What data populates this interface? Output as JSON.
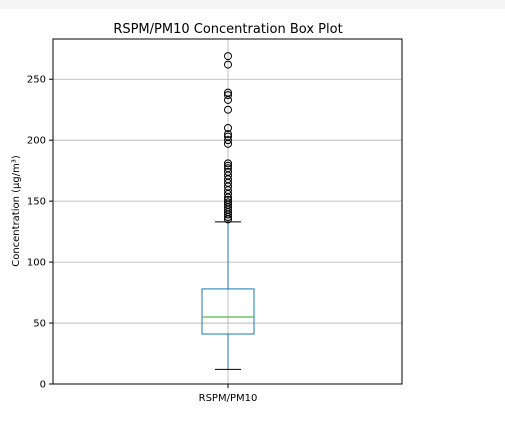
{
  "chart_data": {
    "type": "box",
    "title": "RSPM/PM10 Concentration Box Plot",
    "xlabel": "",
    "ylabel": "Concentration (µg/m³)",
    "categories": [
      "RSPM/PM10"
    ],
    "ylim": [
      0,
      283
    ],
    "yticks": [
      0,
      50,
      100,
      150,
      200,
      250
    ],
    "grid": true,
    "box": {
      "whisker_low": 12,
      "q1": 41,
      "median": 55,
      "q3": 78,
      "whisker_high": 133
    },
    "outliers": [
      135,
      137,
      139,
      141,
      143,
      145,
      147,
      149,
      151,
      153,
      156,
      159,
      162,
      165,
      168,
      171,
      174,
      177,
      179,
      181,
      197,
      200,
      203,
      205,
      210,
      225,
      233,
      237,
      239,
      262,
      269
    ],
    "colors": {
      "box": "#1f77b4",
      "median": "#2ca02c",
      "whisker": "#1f77b4",
      "cap": "#000000",
      "grid": "#b0b0b0"
    }
  }
}
